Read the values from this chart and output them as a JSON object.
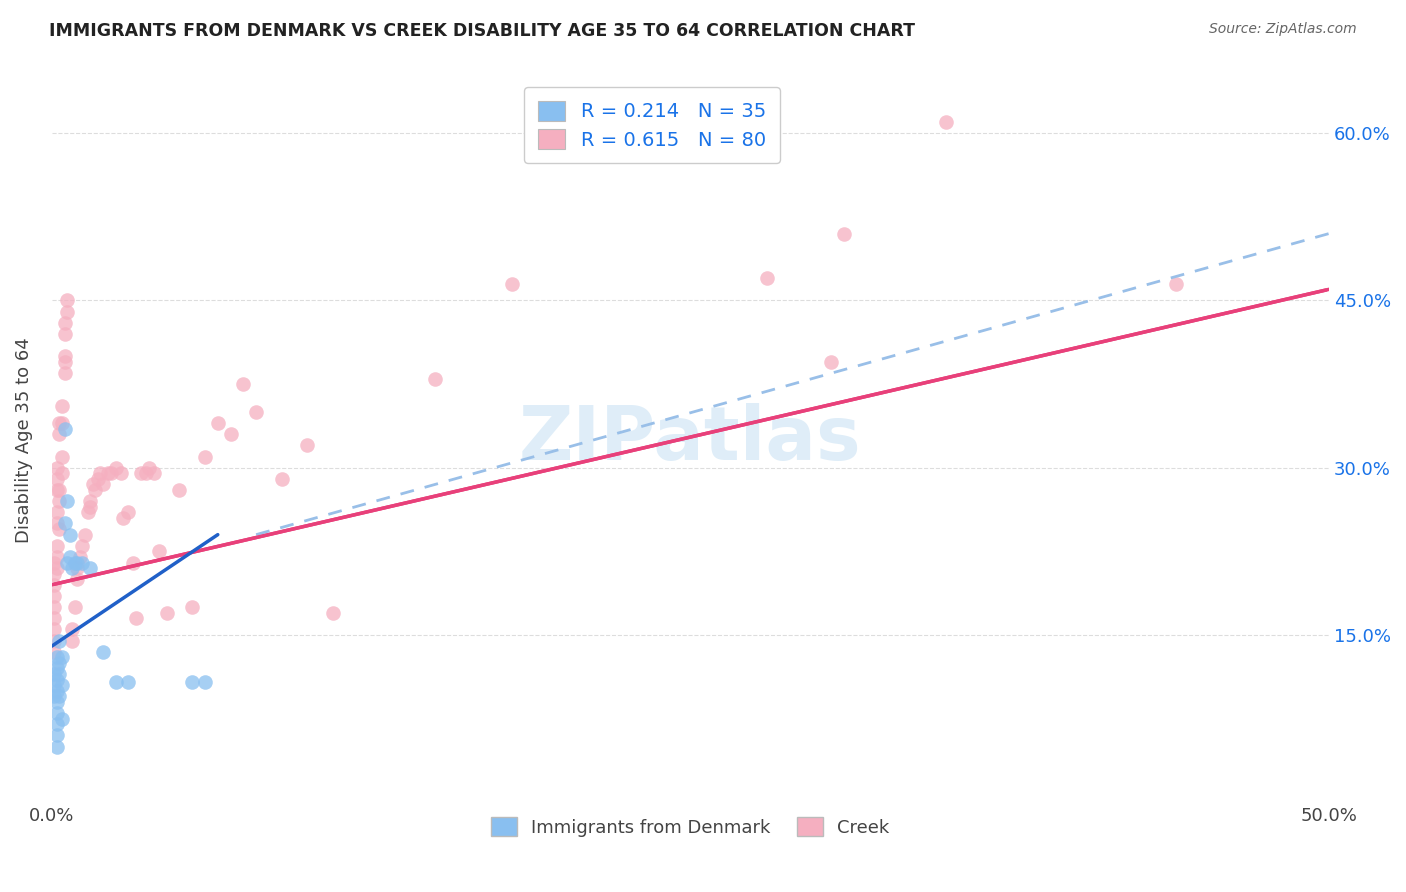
{
  "title": "IMMIGRANTS FROM DENMARK VS CREEK DISABILITY AGE 35 TO 64 CORRELATION CHART",
  "source": "Source: ZipAtlas.com",
  "ylabel": "Disability Age 35 to 64",
  "xlim": [
    0.0,
    0.5
  ],
  "ylim": [
    0.0,
    0.65
  ],
  "ytick_positions": [
    0.15,
    0.3,
    0.45,
    0.6
  ],
  "ytick_labels_right": [
    "15.0%",
    "30.0%",
    "45.0%",
    "60.0%"
  ],
  "legend_label1": "R = 0.214   N = 35",
  "legend_label2": "R = 0.615   N = 80",
  "legend_bottom_labels": [
    "Immigrants from Denmark",
    "Creek"
  ],
  "denmark_color": "#89bff0",
  "creek_color": "#f5afc0",
  "denmark_line_color": "#2060c8",
  "creek_line_color": "#e8407a",
  "denmark_dash_color": "#99bfe8",
  "watermark_text": "ZIPatlas",
  "background_color": "#ffffff",
  "grid_color": "#dddddd",
  "denmark_points": [
    [
      0.001,
      0.115
    ],
    [
      0.001,
      0.105
    ],
    [
      0.001,
      0.095
    ],
    [
      0.002,
      0.13
    ],
    [
      0.002,
      0.11
    ],
    [
      0.002,
      0.12
    ],
    [
      0.002,
      0.1
    ],
    [
      0.002,
      0.09
    ],
    [
      0.002,
      0.08
    ],
    [
      0.002,
      0.07
    ],
    [
      0.002,
      0.06
    ],
    [
      0.002,
      0.05
    ],
    [
      0.003,
      0.115
    ],
    [
      0.003,
      0.095
    ],
    [
      0.003,
      0.145
    ],
    [
      0.003,
      0.125
    ],
    [
      0.004,
      0.13
    ],
    [
      0.004,
      0.105
    ],
    [
      0.004,
      0.075
    ],
    [
      0.005,
      0.335
    ],
    [
      0.005,
      0.25
    ],
    [
      0.006,
      0.27
    ],
    [
      0.006,
      0.215
    ],
    [
      0.007,
      0.24
    ],
    [
      0.007,
      0.22
    ],
    [
      0.008,
      0.21
    ],
    [
      0.009,
      0.215
    ],
    [
      0.01,
      0.215
    ],
    [
      0.012,
      0.215
    ],
    [
      0.015,
      0.21
    ],
    [
      0.02,
      0.135
    ],
    [
      0.025,
      0.108
    ],
    [
      0.03,
      0.108
    ],
    [
      0.055,
      0.108
    ],
    [
      0.06,
      0.108
    ]
  ],
  "creek_points": [
    [
      0.001,
      0.205
    ],
    [
      0.001,
      0.195
    ],
    [
      0.001,
      0.185
    ],
    [
      0.001,
      0.175
    ],
    [
      0.001,
      0.165
    ],
    [
      0.001,
      0.155
    ],
    [
      0.001,
      0.145
    ],
    [
      0.001,
      0.135
    ],
    [
      0.001,
      0.215
    ],
    [
      0.002,
      0.28
    ],
    [
      0.002,
      0.26
    ],
    [
      0.002,
      0.25
    ],
    [
      0.002,
      0.23
    ],
    [
      0.002,
      0.22
    ],
    [
      0.002,
      0.21
    ],
    [
      0.002,
      0.3
    ],
    [
      0.002,
      0.29
    ],
    [
      0.003,
      0.28
    ],
    [
      0.003,
      0.27
    ],
    [
      0.003,
      0.245
    ],
    [
      0.003,
      0.34
    ],
    [
      0.003,
      0.33
    ],
    [
      0.004,
      0.31
    ],
    [
      0.004,
      0.295
    ],
    [
      0.004,
      0.355
    ],
    [
      0.004,
      0.34
    ],
    [
      0.005,
      0.43
    ],
    [
      0.005,
      0.42
    ],
    [
      0.005,
      0.4
    ],
    [
      0.005,
      0.385
    ],
    [
      0.005,
      0.395
    ],
    [
      0.006,
      0.45
    ],
    [
      0.006,
      0.44
    ],
    [
      0.008,
      0.145
    ],
    [
      0.008,
      0.155
    ],
    [
      0.009,
      0.175
    ],
    [
      0.01,
      0.2
    ],
    [
      0.01,
      0.21
    ],
    [
      0.011,
      0.22
    ],
    [
      0.012,
      0.23
    ],
    [
      0.013,
      0.24
    ],
    [
      0.014,
      0.26
    ],
    [
      0.015,
      0.27
    ],
    [
      0.015,
      0.265
    ],
    [
      0.016,
      0.285
    ],
    [
      0.017,
      0.28
    ],
    [
      0.018,
      0.29
    ],
    [
      0.019,
      0.295
    ],
    [
      0.02,
      0.285
    ],
    [
      0.022,
      0.295
    ],
    [
      0.023,
      0.295
    ],
    [
      0.025,
      0.3
    ],
    [
      0.027,
      0.295
    ],
    [
      0.028,
      0.255
    ],
    [
      0.03,
      0.26
    ],
    [
      0.032,
      0.215
    ],
    [
      0.033,
      0.165
    ],
    [
      0.035,
      0.295
    ],
    [
      0.037,
      0.295
    ],
    [
      0.038,
      0.3
    ],
    [
      0.04,
      0.295
    ],
    [
      0.042,
      0.225
    ],
    [
      0.045,
      0.17
    ],
    [
      0.05,
      0.28
    ],
    [
      0.055,
      0.175
    ],
    [
      0.06,
      0.31
    ],
    [
      0.065,
      0.34
    ],
    [
      0.07,
      0.33
    ],
    [
      0.075,
      0.375
    ],
    [
      0.08,
      0.35
    ],
    [
      0.09,
      0.29
    ],
    [
      0.1,
      0.32
    ],
    [
      0.11,
      0.17
    ],
    [
      0.15,
      0.38
    ],
    [
      0.18,
      0.465
    ],
    [
      0.28,
      0.47
    ],
    [
      0.305,
      0.395
    ],
    [
      0.31,
      0.51
    ],
    [
      0.35,
      0.61
    ],
    [
      0.44,
      0.465
    ]
  ],
  "denmark_line": {
    "x0": 0.0,
    "y0": 0.14,
    "x1": 0.065,
    "y1": 0.24
  },
  "creek_line": {
    "x0": 0.0,
    "y0": 0.195,
    "x1": 0.5,
    "y1": 0.46
  },
  "dash_line": {
    "x0": 0.08,
    "y0": 0.24,
    "x1": 0.5,
    "y1": 0.51
  }
}
